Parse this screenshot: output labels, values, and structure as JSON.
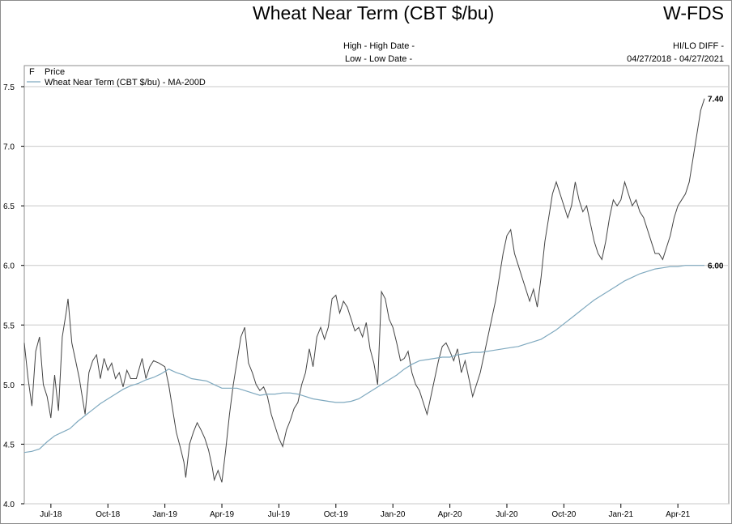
{
  "header": {
    "title": "Wheat Near Term (CBT $/bu)",
    "symbol": "W-FDS",
    "high_label": "High - High Date -",
    "low_label": "Low - Low Date -",
    "diff_label": "HI/LO DIFF -",
    "date_range": "04/27/2018 - 04/27/2021"
  },
  "chart_data": {
    "type": "line",
    "title": "Wheat Near Term (CBT $/bu)",
    "ylim": [
      4.0,
      7.5
    ],
    "yticks": [
      "4.0",
      "4.5",
      "5.0",
      "5.5",
      "6.0",
      "6.5",
      "7.0",
      "7.5"
    ],
    "xlim_month_index": [
      1.6,
      37.4
    ],
    "xticks": [
      {
        "label": "Jul-18",
        "month_index": 3
      },
      {
        "label": "Oct-18",
        "month_index": 6
      },
      {
        "label": "Jan-19",
        "month_index": 9
      },
      {
        "label": "Apr-19",
        "month_index": 12
      },
      {
        "label": "Jul-19",
        "month_index": 15
      },
      {
        "label": "Oct-19",
        "month_index": 18
      },
      {
        "label": "Jan-20",
        "month_index": 21
      },
      {
        "label": "Apr-20",
        "month_index": 24
      },
      {
        "label": "Jul-20",
        "month_index": 27
      },
      {
        "label": "Oct-20",
        "month_index": 30
      },
      {
        "label": "Jan-21",
        "month_index": 33
      },
      {
        "label": "Apr-21",
        "month_index": 36
      }
    ],
    "grid": true,
    "legend_position": "top-left",
    "series": [
      {
        "name": "Price",
        "color": "#444444",
        "last_value_label": "7.40",
        "points": [
          [
            1.6,
            5.35
          ],
          [
            1.8,
            5.05
          ],
          [
            2.0,
            4.82
          ],
          [
            2.2,
            5.28
          ],
          [
            2.4,
            5.4
          ],
          [
            2.6,
            5.0
          ],
          [
            2.8,
            4.9
          ],
          [
            3.0,
            4.72
          ],
          [
            3.2,
            5.08
          ],
          [
            3.4,
            4.78
          ],
          [
            3.6,
            5.4
          ],
          [
            3.8,
            5.6
          ],
          [
            3.9,
            5.72
          ],
          [
            4.1,
            5.35
          ],
          [
            4.3,
            5.2
          ],
          [
            4.5,
            5.05
          ],
          [
            4.7,
            4.85
          ],
          [
            4.8,
            4.75
          ],
          [
            5.0,
            5.1
          ],
          [
            5.2,
            5.2
          ],
          [
            5.4,
            5.25
          ],
          [
            5.6,
            5.05
          ],
          [
            5.8,
            5.22
          ],
          [
            6.0,
            5.12
          ],
          [
            6.2,
            5.18
          ],
          [
            6.4,
            5.05
          ],
          [
            6.6,
            5.1
          ],
          [
            6.8,
            4.98
          ],
          [
            7.0,
            5.12
          ],
          [
            7.2,
            5.05
          ],
          [
            7.5,
            5.05
          ],
          [
            7.8,
            5.22
          ],
          [
            8.0,
            5.05
          ],
          [
            8.2,
            5.15
          ],
          [
            8.4,
            5.2
          ],
          [
            8.7,
            5.18
          ],
          [
            9.0,
            5.15
          ],
          [
            9.2,
            5.0
          ],
          [
            9.4,
            4.8
          ],
          [
            9.6,
            4.6
          ],
          [
            9.8,
            4.48
          ],
          [
            10.0,
            4.35
          ],
          [
            10.1,
            4.22
          ],
          [
            10.3,
            4.5
          ],
          [
            10.5,
            4.6
          ],
          [
            10.7,
            4.68
          ],
          [
            10.9,
            4.62
          ],
          [
            11.1,
            4.55
          ],
          [
            11.3,
            4.45
          ],
          [
            11.5,
            4.3
          ],
          [
            11.6,
            4.2
          ],
          [
            11.8,
            4.28
          ],
          [
            12.0,
            4.18
          ],
          [
            12.2,
            4.45
          ],
          [
            12.4,
            4.75
          ],
          [
            12.6,
            5.0
          ],
          [
            12.8,
            5.2
          ],
          [
            13.0,
            5.4
          ],
          [
            13.2,
            5.48
          ],
          [
            13.4,
            5.18
          ],
          [
            13.6,
            5.1
          ],
          [
            13.8,
            5.0
          ],
          [
            14.0,
            4.95
          ],
          [
            14.2,
            4.98
          ],
          [
            14.4,
            4.9
          ],
          [
            14.6,
            4.75
          ],
          [
            14.8,
            4.65
          ],
          [
            15.0,
            4.55
          ],
          [
            15.2,
            4.48
          ],
          [
            15.4,
            4.62
          ],
          [
            15.6,
            4.7
          ],
          [
            15.8,
            4.8
          ],
          [
            16.0,
            4.85
          ],
          [
            16.2,
            5.0
          ],
          [
            16.4,
            5.1
          ],
          [
            16.6,
            5.3
          ],
          [
            16.8,
            5.15
          ],
          [
            17.0,
            5.4
          ],
          [
            17.2,
            5.48
          ],
          [
            17.4,
            5.38
          ],
          [
            17.6,
            5.48
          ],
          [
            17.8,
            5.72
          ],
          [
            18.0,
            5.75
          ],
          [
            18.2,
            5.6
          ],
          [
            18.4,
            5.7
          ],
          [
            18.6,
            5.65
          ],
          [
            18.8,
            5.55
          ],
          [
            19.0,
            5.45
          ],
          [
            19.2,
            5.48
          ],
          [
            19.4,
            5.4
          ],
          [
            19.6,
            5.52
          ],
          [
            19.8,
            5.3
          ],
          [
            20.0,
            5.18
          ],
          [
            20.2,
            5.0
          ],
          [
            20.4,
            5.78
          ],
          [
            20.6,
            5.72
          ],
          [
            20.8,
            5.55
          ],
          [
            21.0,
            5.48
          ],
          [
            21.2,
            5.35
          ],
          [
            21.4,
            5.2
          ],
          [
            21.6,
            5.22
          ],
          [
            21.8,
            5.28
          ],
          [
            22.0,
            5.1
          ],
          [
            22.2,
            5.0
          ],
          [
            22.4,
            4.95
          ],
          [
            22.6,
            4.85
          ],
          [
            22.8,
            4.75
          ],
          [
            23.0,
            4.9
          ],
          [
            23.2,
            5.05
          ],
          [
            23.4,
            5.2
          ],
          [
            23.6,
            5.32
          ],
          [
            23.8,
            5.35
          ],
          [
            24.0,
            5.28
          ],
          [
            24.2,
            5.2
          ],
          [
            24.4,
            5.3
          ],
          [
            24.6,
            5.1
          ],
          [
            24.8,
            5.2
          ],
          [
            25.0,
            5.05
          ],
          [
            25.2,
            4.9
          ],
          [
            25.4,
            5.0
          ],
          [
            25.6,
            5.1
          ],
          [
            25.8,
            5.25
          ],
          [
            26.0,
            5.4
          ],
          [
            26.2,
            5.55
          ],
          [
            26.4,
            5.7
          ],
          [
            26.6,
            5.9
          ],
          [
            26.8,
            6.1
          ],
          [
            27.0,
            6.25
          ],
          [
            27.2,
            6.3
          ],
          [
            27.4,
            6.1
          ],
          [
            27.6,
            6.0
          ],
          [
            27.8,
            5.9
          ],
          [
            28.0,
            5.8
          ],
          [
            28.2,
            5.7
          ],
          [
            28.4,
            5.8
          ],
          [
            28.6,
            5.65
          ],
          [
            28.8,
            5.9
          ],
          [
            29.0,
            6.2
          ],
          [
            29.2,
            6.4
          ],
          [
            29.4,
            6.6
          ],
          [
            29.6,
            6.7
          ],
          [
            29.8,
            6.6
          ],
          [
            30.0,
            6.5
          ],
          [
            30.2,
            6.4
          ],
          [
            30.4,
            6.5
          ],
          [
            30.6,
            6.7
          ],
          [
            30.8,
            6.55
          ],
          [
            31.0,
            6.45
          ],
          [
            31.2,
            6.5
          ],
          [
            31.4,
            6.35
          ],
          [
            31.6,
            6.2
          ],
          [
            31.8,
            6.1
          ],
          [
            32.0,
            6.05
          ],
          [
            32.2,
            6.2
          ],
          [
            32.4,
            6.4
          ],
          [
            32.6,
            6.55
          ],
          [
            32.8,
            6.5
          ],
          [
            33.0,
            6.55
          ],
          [
            33.2,
            6.7
          ],
          [
            33.4,
            6.6
          ],
          [
            33.6,
            6.5
          ],
          [
            33.8,
            6.55
          ],
          [
            34.0,
            6.45
          ],
          [
            34.2,
            6.4
          ],
          [
            34.4,
            6.3
          ],
          [
            34.6,
            6.2
          ],
          [
            34.8,
            6.1
          ],
          [
            35.0,
            6.1
          ],
          [
            35.2,
            6.05
          ],
          [
            35.4,
            6.15
          ],
          [
            35.6,
            6.25
          ],
          [
            35.8,
            6.4
          ],
          [
            36.0,
            6.5
          ],
          [
            36.2,
            6.55
          ],
          [
            36.4,
            6.6
          ],
          [
            36.6,
            6.7
          ],
          [
            36.8,
            6.9
          ],
          [
            37.0,
            7.1
          ],
          [
            37.2,
            7.3
          ],
          [
            37.4,
            7.4
          ]
        ]
      },
      {
        "name": "Wheat Near Term (CBT $/bu) - MA-200D",
        "color": "#7fa9bf",
        "last_value_label": "6.00",
        "points": [
          [
            1.6,
            4.43
          ],
          [
            2.0,
            4.44
          ],
          [
            2.4,
            4.46
          ],
          [
            2.8,
            4.52
          ],
          [
            3.2,
            4.57
          ],
          [
            3.6,
            4.6
          ],
          [
            4.0,
            4.63
          ],
          [
            4.4,
            4.69
          ],
          [
            4.8,
            4.74
          ],
          [
            5.2,
            4.79
          ],
          [
            5.6,
            4.84
          ],
          [
            6.0,
            4.88
          ],
          [
            6.4,
            4.92
          ],
          [
            6.8,
            4.96
          ],
          [
            7.2,
            4.99
          ],
          [
            7.6,
            5.01
          ],
          [
            8.0,
            5.04
          ],
          [
            8.4,
            5.06
          ],
          [
            8.8,
            5.09
          ],
          [
            9.2,
            5.13
          ],
          [
            9.6,
            5.1
          ],
          [
            10.0,
            5.08
          ],
          [
            10.4,
            5.05
          ],
          [
            10.8,
            5.04
          ],
          [
            11.2,
            5.03
          ],
          [
            11.6,
            5.0
          ],
          [
            12.0,
            4.97
          ],
          [
            12.4,
            4.97
          ],
          [
            12.8,
            4.97
          ],
          [
            13.2,
            4.95
          ],
          [
            13.6,
            4.93
          ],
          [
            14.0,
            4.91
          ],
          [
            14.4,
            4.92
          ],
          [
            14.8,
            4.92
          ],
          [
            15.2,
            4.93
          ],
          [
            15.6,
            4.93
          ],
          [
            16.0,
            4.92
          ],
          [
            16.4,
            4.9
          ],
          [
            16.8,
            4.88
          ],
          [
            17.2,
            4.87
          ],
          [
            17.6,
            4.86
          ],
          [
            18.0,
            4.85
          ],
          [
            18.4,
            4.85
          ],
          [
            18.8,
            4.86
          ],
          [
            19.2,
            4.88
          ],
          [
            19.6,
            4.92
          ],
          [
            20.0,
            4.96
          ],
          [
            20.4,
            5.0
          ],
          [
            20.8,
            5.04
          ],
          [
            21.2,
            5.08
          ],
          [
            21.6,
            5.13
          ],
          [
            22.0,
            5.17
          ],
          [
            22.4,
            5.2
          ],
          [
            22.8,
            5.21
          ],
          [
            23.2,
            5.22
          ],
          [
            23.6,
            5.23
          ],
          [
            24.0,
            5.23
          ],
          [
            24.4,
            5.25
          ],
          [
            24.8,
            5.26
          ],
          [
            25.2,
            5.27
          ],
          [
            25.6,
            5.27
          ],
          [
            26.0,
            5.28
          ],
          [
            26.4,
            5.29
          ],
          [
            26.8,
            5.3
          ],
          [
            27.2,
            5.31
          ],
          [
            27.6,
            5.32
          ],
          [
            28.0,
            5.34
          ],
          [
            28.4,
            5.36
          ],
          [
            28.8,
            5.38
          ],
          [
            29.2,
            5.42
          ],
          [
            29.6,
            5.46
          ],
          [
            30.0,
            5.51
          ],
          [
            30.4,
            5.56
          ],
          [
            30.8,
            5.61
          ],
          [
            31.2,
            5.66
          ],
          [
            31.6,
            5.71
          ],
          [
            32.0,
            5.75
          ],
          [
            32.4,
            5.79
          ],
          [
            32.8,
            5.83
          ],
          [
            33.2,
            5.87
          ],
          [
            33.6,
            5.9
          ],
          [
            34.0,
            5.93
          ],
          [
            34.4,
            5.95
          ],
          [
            34.8,
            5.97
          ],
          [
            35.2,
            5.98
          ],
          [
            35.6,
            5.99
          ],
          [
            36.0,
            5.99
          ],
          [
            36.4,
            6.0
          ],
          [
            36.8,
            6.0
          ],
          [
            37.4,
            6.0
          ]
        ]
      }
    ]
  }
}
